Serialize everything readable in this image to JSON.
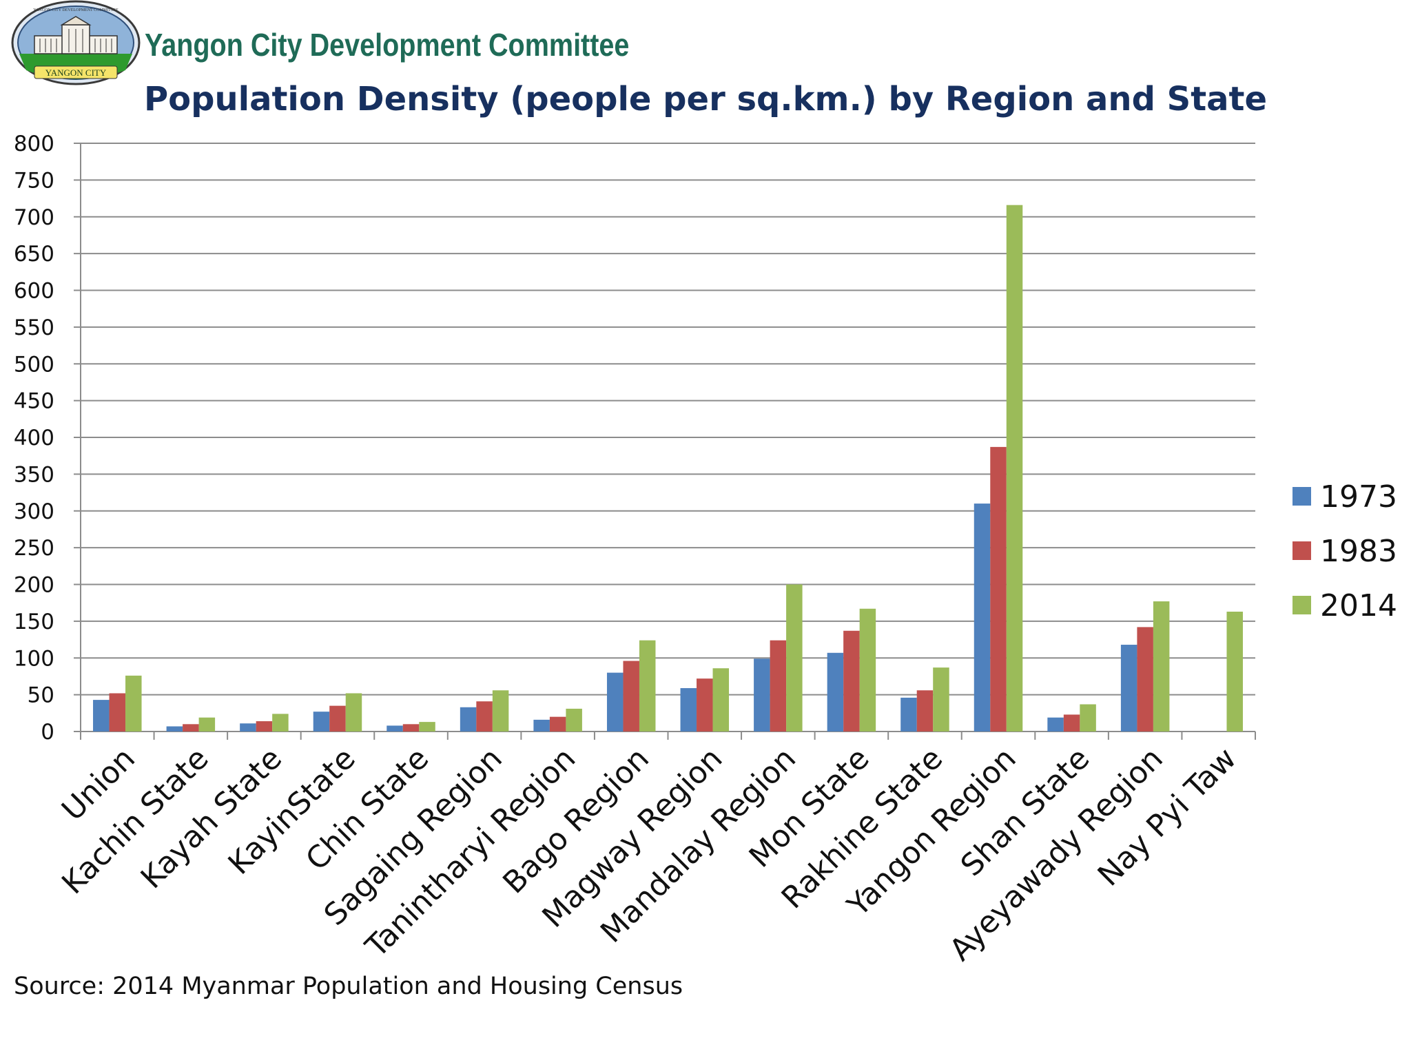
{
  "header": {
    "org_name": "Yangon City Development Committee",
    "logo_text": "YANGON CITY",
    "logo_arc_text": "YANGON CITY DEVELOPMENT COMMITTEE"
  },
  "footer": {
    "source": "Source: 2014 Myanmar Population and Housing Census"
  },
  "colors": {
    "1973": "#4f81bd",
    "1983": "#c0504d",
    "2014": "#9bbb59",
    "grid": "#8c8c8c",
    "title": "#17305f",
    "org": "#1f6b57"
  },
  "chart_data": {
    "type": "bar",
    "title": "Population Density (people per sq.km.) by Region and State",
    "xlabel": "",
    "ylabel": "",
    "ylim": [
      0,
      800
    ],
    "yticks": [
      0,
      50,
      100,
      150,
      200,
      250,
      300,
      350,
      400,
      450,
      500,
      550,
      600,
      650,
      700,
      750,
      800
    ],
    "grid": true,
    "legend_position": "right",
    "categories": [
      "Union",
      "Kachin State",
      "Kayah State",
      "KayinState",
      "Chin State",
      "Sagaing Region",
      "Tanintharyi Region",
      "Bago Region",
      "Magway Region",
      "Mandalay Region",
      "Mon State",
      "Rakhine State",
      "Yangon Region",
      "Shan State",
      "Ayeyawady Region",
      "Nay Pyi Taw"
    ],
    "series": [
      {
        "name": "1973",
        "values": [
          43,
          7,
          11,
          27,
          8,
          33,
          16,
          80,
          59,
          99,
          107,
          46,
          310,
          19,
          118,
          null
        ]
      },
      {
        "name": "1983",
        "values": [
          52,
          10,
          14,
          35,
          10,
          41,
          20,
          96,
          72,
          124,
          137,
          56,
          387,
          23,
          142,
          null
        ]
      },
      {
        "name": "2014",
        "values": [
          76,
          19,
          24,
          52,
          13,
          56,
          31,
          124,
          86,
          200,
          167,
          87,
          716,
          37,
          177,
          163
        ]
      }
    ]
  }
}
